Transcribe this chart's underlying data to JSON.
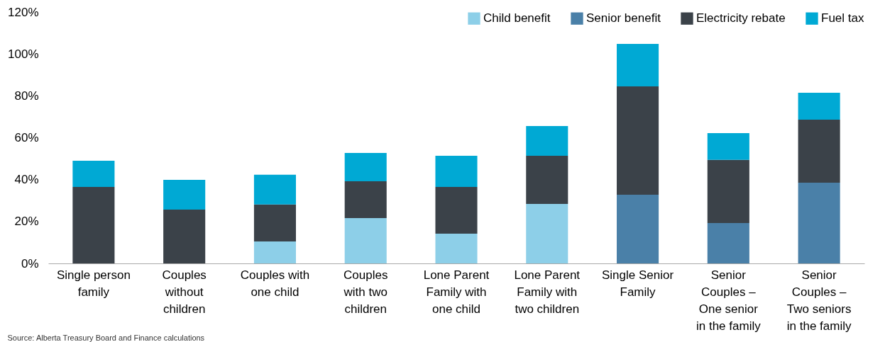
{
  "chart_data": {
    "type": "bar",
    "stacked": true,
    "categories": [
      "Single person\nfamily",
      "Couples\nwithout\nchildren",
      "Couples with\none child",
      "Couples\nwith two\nchildren",
      "Lone Parent\nFamily with\none child",
      "Lone Parent\nFamily with\ntwo children",
      "Single Senior\nFamily",
      "Senior\nCouples –\nOne senior\nin the family",
      "Senior\nCouples –\nTwo seniors\nin the family"
    ],
    "series": [
      {
        "name": "Child benefit",
        "color": "#8dcfe8",
        "values": [
          null,
          null,
          10.5,
          21.6,
          14.2,
          28.4,
          null,
          null,
          null
        ]
      },
      {
        "name": "Senior benefit",
        "color": "#4a80a8",
        "values": [
          null,
          null,
          null,
          null,
          null,
          null,
          32.8,
          19.3,
          38.5
        ]
      },
      {
        "name": "Electricity rebate",
        "color": "#3b4249",
        "values": [
          36.5,
          25.7,
          17.6,
          17.6,
          22.3,
          23.0,
          51.7,
          30.1,
          30.1
        ]
      },
      {
        "name": "Fuel tax",
        "color": "#00a9d4",
        "values": [
          12.5,
          14.2,
          14.2,
          13.5,
          14.9,
          14.2,
          20.3,
          12.8,
          12.9
        ]
      }
    ],
    "ylim": [
      0,
      120
    ],
    "yticks": [
      {
        "value": 0,
        "label": "0%"
      },
      {
        "value": 20,
        "label": "20%"
      },
      {
        "value": 40,
        "label": "40%"
      },
      {
        "value": 60,
        "label": "60%"
      },
      {
        "value": 80,
        "label": "80%"
      },
      {
        "value": 100,
        "label": "100%"
      },
      {
        "value": 120,
        "label": "120%"
      }
    ],
    "grid": false,
    "legend": "top right",
    "annotations": [
      "Source: Alberta Treasury Board and Finance calculations"
    ]
  }
}
